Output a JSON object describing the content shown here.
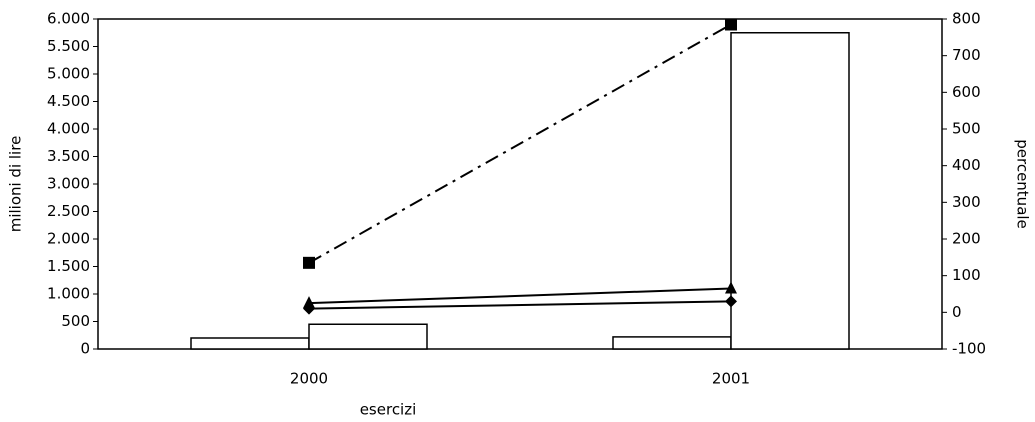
{
  "chart_data": {
    "type": "bar_line",
    "categories": [
      "2000",
      "2001"
    ],
    "xlabel": "esercizi",
    "ylabel": "milioni di lire",
    "y2label": "percentuale",
    "ylim": [
      0,
      6000
    ],
    "yticks": [
      0,
      500,
      {
        "value": 1000,
        "label": "1.000"
      },
      {
        "value": 1500,
        "label": "1.500"
      },
      {
        "value": 2000,
        "label": "2.000"
      },
      {
        "value": 2500,
        "label": "2.500"
      },
      {
        "value": 3000,
        "label": "3.000"
      },
      {
        "value": 3500,
        "label": "3.500"
      },
      {
        "value": 4000,
        "label": "4.000"
      },
      {
        "value": 4500,
        "label": "4.500"
      },
      {
        "value": 5000,
        "label": "5.000"
      },
      {
        "value": 5500,
        "label": "5.500"
      },
      {
        "value": 6000,
        "label": "6.000"
      }
    ],
    "y2lim": [
      -100,
      800
    ],
    "y2ticks": [
      -100,
      0,
      100,
      200,
      300,
      400,
      500,
      600,
      700,
      800
    ],
    "series": [
      {
        "kind": "bar",
        "color": "#ffffff",
        "values": [
          200,
          220
        ]
      },
      {
        "kind": "bar",
        "color": "#ffffff",
        "values": [
          450,
          5750
        ]
      },
      {
        "kind": "line",
        "axis": "y2",
        "color": "#000000",
        "marker": "square",
        "dash": "dashdot",
        "values": [
          135,
          785
        ]
      },
      {
        "kind": "line",
        "axis": "y2",
        "color": "#000000",
        "marker": "triangle",
        "dash": "solid",
        "values": [
          25,
          65
        ]
      },
      {
        "kind": "line",
        "axis": "y2",
        "color": "#000000",
        "marker": "diamond",
        "dash": "solid",
        "values": [
          10,
          30
        ]
      }
    ]
  }
}
